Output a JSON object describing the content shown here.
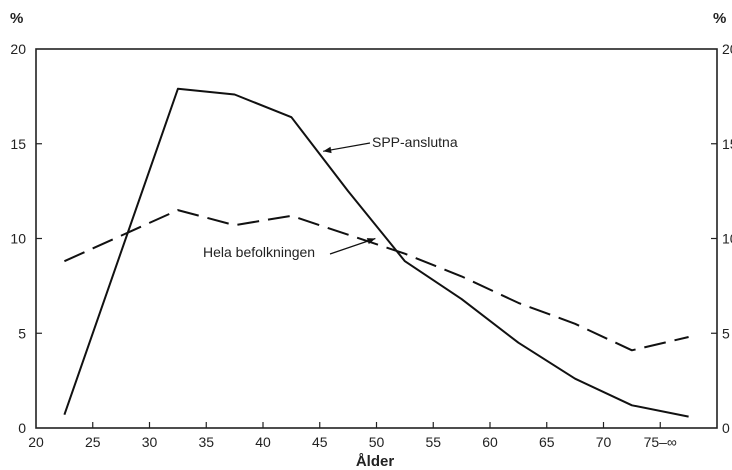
{
  "chart_data": {
    "type": "line",
    "xlabel": "Ålder",
    "ylabel_left": "%",
    "ylabel_right": "%",
    "xlim": [
      20,
      80
    ],
    "ylim": [
      0,
      20
    ],
    "x_ticks": [
      "20",
      "25",
      "30",
      "35",
      "40",
      "45",
      "50",
      "55",
      "60",
      "65",
      "70",
      "75–∞"
    ],
    "x_tick_values": [
      20,
      25,
      30,
      35,
      40,
      45,
      50,
      55,
      60,
      65,
      70,
      75
    ],
    "y_ticks": [
      "0",
      "5",
      "10",
      "15",
      "20"
    ],
    "y_tick_values": [
      0,
      5,
      10,
      15,
      20
    ],
    "grid": false,
    "series": [
      {
        "name": "SPP-anslutna",
        "style": "solid",
        "x": [
          22.5,
          32.5,
          37.5,
          42.5,
          47.5,
          52.5,
          57.5,
          62.5,
          67.5,
          72.5,
          77.5
        ],
        "values": [
          0.7,
          17.9,
          17.6,
          16.4,
          12.5,
          8.8,
          6.8,
          4.5,
          2.6,
          1.2,
          0.6
        ]
      },
      {
        "name": "Hela befolkningen",
        "style": "dashed",
        "x": [
          22.5,
          32.5,
          37.5,
          42.5,
          47.5,
          52.5,
          57.5,
          62.5,
          67.5,
          72.5,
          77.5
        ],
        "values": [
          8.8,
          11.5,
          10.7,
          11.2,
          10.2,
          9.2,
          8.0,
          6.6,
          5.5,
          4.1,
          4.8
        ]
      }
    ],
    "annotations": [
      {
        "text": "SPP-anslutna",
        "series": 0,
        "point_x": 45.3,
        "point_y": 14.6
      },
      {
        "text": "Hela befolkningen",
        "series": 1,
        "point_x": 49.9,
        "point_y": 10.0
      }
    ]
  }
}
